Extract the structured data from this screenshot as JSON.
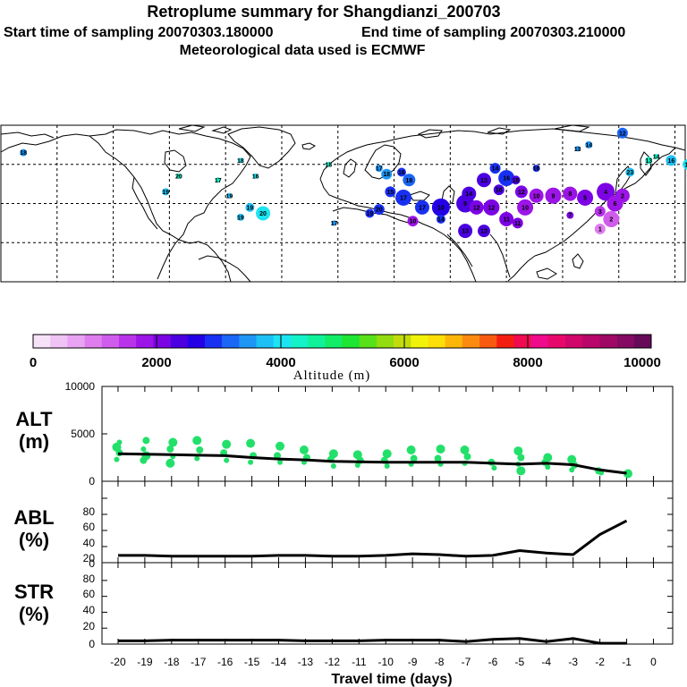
{
  "header": {
    "title": "Retroplume summary for Shangdianzi_200703",
    "start_label": "Start time of sampling 20070303.180000",
    "end_label": "End time of sampling 20070303.210000",
    "met_label": "Meteorological data used is ECMWF"
  },
  "colorbar": {
    "title": "Altitude (m)",
    "tick_labels": [
      "0",
      "2000",
      "4000",
      "6000",
      "8000",
      "10000"
    ],
    "colors": [
      "#f7e1f9",
      "#f0c3f5",
      "#e8a3f2",
      "#de7eee",
      "#d05cec",
      "#b933ea",
      "#9c14e6",
      "#7c04e4",
      "#4a00e0",
      "#2400e6",
      "#1830f2",
      "#1a66f5",
      "#1d96f5",
      "#1dc0f5",
      "#1ce4f2",
      "#13f2c8",
      "#10f29a",
      "#12ec66",
      "#1ee432",
      "#58e018",
      "#92dc10",
      "#c2dc0a",
      "#f0f20a",
      "#fcde08",
      "#fcb608",
      "#fc8a10",
      "#f85a10",
      "#f41e10",
      "#f00a50",
      "#f00a8c",
      "#e8086c",
      "#d0066a",
      "#b8066a",
      "#a00866",
      "#840a62",
      "#660a58"
    ]
  },
  "map": {
    "markers": [
      {
        "lon": -168,
        "lat": 66,
        "label": "18",
        "color": "#1d96f5",
        "r": 4
      },
      {
        "lon": -92,
        "lat": 46,
        "label": "19",
        "color": "#1dc0f5",
        "r": 4
      },
      {
        "lon": -85,
        "lat": 54,
        "label": "20",
        "color": "#13f2c8",
        "r": 3
      },
      {
        "lon": -64,
        "lat": 52,
        "label": "17",
        "color": "#13f2c8",
        "r": 3
      },
      {
        "lon": -58,
        "lat": 44,
        "label": "19",
        "color": "#1dc0f5",
        "r": 3
      },
      {
        "lon": -52,
        "lat": 62,
        "label": "18",
        "color": "#1ce4f2",
        "r": 3
      },
      {
        "lon": -44,
        "lat": 54,
        "label": "16",
        "color": "#1ce4f2",
        "r": 3
      },
      {
        "lon": -47,
        "lat": 38,
        "label": "19",
        "color": "#1dc0f5",
        "r": 5
      },
      {
        "lon": -40,
        "lat": 35,
        "label": "20",
        "color": "#1ce4f2",
        "r": 8
      },
      {
        "lon": -52,
        "lat": 33,
        "label": "19",
        "color": "#1dc0f5",
        "r": 4
      },
      {
        "lon": -5,
        "lat": 60,
        "label": "18",
        "color": "#13f2c8",
        "r": 3
      },
      {
        "lon": -2,
        "lat": 30,
        "label": "17",
        "color": "#1d96f5",
        "r": 3
      },
      {
        "lon": 22,
        "lat": 58,
        "label": "17",
        "color": "#1d96f5",
        "r": 4
      },
      {
        "lon": 26,
        "lat": 55,
        "label": "18",
        "color": "#1d96f5",
        "r": 6
      },
      {
        "lon": 34,
        "lat": 56,
        "label": "16",
        "color": "#1830f2",
        "r": 5
      },
      {
        "lon": 28,
        "lat": 46,
        "label": "15",
        "color": "#1830f2",
        "r": 6
      },
      {
        "lon": 35,
        "lat": 43,
        "label": "17",
        "color": "#1830f2",
        "r": 9
      },
      {
        "lon": 38,
        "lat": 52,
        "label": "18",
        "color": "#1a66f5",
        "r": 7
      },
      {
        "lon": 22,
        "lat": 37,
        "label": "20",
        "color": "#1830f2",
        "r": 6
      },
      {
        "lon": 17,
        "lat": 35,
        "label": "19",
        "color": "#1830f2",
        "r": 5
      },
      {
        "lon": 45,
        "lat": 38,
        "label": "17",
        "color": "#1830f2",
        "r": 8
      },
      {
        "lon": 40,
        "lat": 31,
        "label": "10",
        "color": "#9c14e6",
        "r": 6
      },
      {
        "lon": 55,
        "lat": 38,
        "label": "10",
        "color": "#2400e6",
        "r": 10
      },
      {
        "lon": 55,
        "lat": 32,
        "label": "14",
        "color": "#1830f2",
        "r": 5
      },
      {
        "lon": 68,
        "lat": 40,
        "label": "9",
        "color": "#4a00e0",
        "r": 10
      },
      {
        "lon": 70,
        "lat": 45,
        "label": "14",
        "color": "#4a00e0",
        "r": 8
      },
      {
        "lon": 78,
        "lat": 52,
        "label": "13",
        "color": "#4a00e0",
        "r": 8
      },
      {
        "lon": 84,
        "lat": 58,
        "label": "14",
        "color": "#1830f2",
        "r": 6
      },
      {
        "lon": 90,
        "lat": 53,
        "label": "16",
        "color": "#1830f2",
        "r": 9
      },
      {
        "lon": 86,
        "lat": 47,
        "label": "16",
        "color": "#4a00e0",
        "r": 6
      },
      {
        "lon": 95,
        "lat": 52,
        "label": "15",
        "color": "#4a00e0",
        "r": 5
      },
      {
        "lon": 98,
        "lat": 46,
        "label": "12",
        "color": "#7c04e4",
        "r": 7
      },
      {
        "lon": 68,
        "lat": 26,
        "label": "13",
        "color": "#4a00e0",
        "r": 8
      },
      {
        "lon": 78,
        "lat": 26,
        "label": "13",
        "color": "#4a00e0",
        "r": 7
      },
      {
        "lon": 74,
        "lat": 38,
        "label": "12",
        "color": "#7c04e4",
        "r": 8
      },
      {
        "lon": 82,
        "lat": 38,
        "label": "12",
        "color": "#7c04e4",
        "r": 9
      },
      {
        "lon": 90,
        "lat": 32,
        "label": "11",
        "color": "#7c04e4",
        "r": 8
      },
      {
        "lon": 96,
        "lat": 30,
        "label": "11",
        "color": "#7c04e4",
        "r": 6
      },
      {
        "lon": 100,
        "lat": 38,
        "label": "10",
        "color": "#9c14e6",
        "r": 9
      },
      {
        "lon": 106,
        "lat": 44,
        "label": "10",
        "color": "#9c14e6",
        "r": 8
      },
      {
        "lon": 115,
        "lat": 44,
        "label": "9",
        "color": "#9c14e6",
        "r": 9
      },
      {
        "lon": 124,
        "lat": 45,
        "label": "8",
        "color": "#9c14e6",
        "r": 8
      },
      {
        "lon": 132,
        "lat": 43,
        "label": "5",
        "color": "#7c04e4",
        "r": 9
      },
      {
        "lon": 143,
        "lat": 46,
        "label": "4",
        "color": "#7c04e4",
        "r": 10
      },
      {
        "lon": 148,
        "lat": 40,
        "label": "6",
        "color": "#9c14e6",
        "r": 9
      },
      {
        "lon": 152,
        "lat": 44,
        "label": "2",
        "color": "#9c14e6",
        "r": 8
      },
      {
        "lon": 140,
        "lat": 36,
        "label": "3",
        "color": "#b933ea",
        "r": 6
      },
      {
        "lon": 146,
        "lat": 32,
        "label": "2",
        "color": "#d05cec",
        "r": 9
      },
      {
        "lon": 140,
        "lat": 27,
        "label": "1",
        "color": "#de7eee",
        "r": 6
      },
      {
        "lon": 124,
        "lat": 34,
        "label": "7",
        "color": "#7c04e4",
        "r": 4
      },
      {
        "lon": 106,
        "lat": 58,
        "label": "16",
        "color": "#1830f2",
        "r": 4
      },
      {
        "lon": 128,
        "lat": 68,
        "label": "13",
        "color": "#1d96f5",
        "r": 3
      },
      {
        "lon": 134,
        "lat": 70,
        "label": "14",
        "color": "#1d96f5",
        "r": 4
      },
      {
        "lon": 152,
        "lat": 76,
        "label": "12",
        "color": "#1a66f5",
        "r": 6
      },
      {
        "lon": 156,
        "lat": 56,
        "label": "23",
        "color": "#1dc0f5",
        "r": 5
      },
      {
        "lon": 166,
        "lat": 62,
        "label": "13",
        "color": "#13f2c8",
        "r": 4
      },
      {
        "lon": 170,
        "lat": 64,
        "label": "14",
        "color": "#13f2c8",
        "r": 3
      },
      {
        "lon": 178,
        "lat": 62,
        "label": "16",
        "color": "#1dc0f5",
        "r": 6
      },
      {
        "lon": 187,
        "lat": 60,
        "label": "19",
        "color": "#1ce4f2",
        "r": 6
      },
      {
        "lon": 188,
        "lat": 55,
        "label": "17",
        "color": "#1ce4f2",
        "r": 3
      }
    ]
  },
  "panels": {
    "alt_label_line1": "ALT",
    "alt_label_line2": "(m)",
    "abl_label_line1": "ABL",
    "abl_label_line2": "(%)",
    "str_label_line1": "STR",
    "str_label_line2": "(%)",
    "alt_ticks": [
      "10000",
      "5000",
      "0"
    ],
    "pct_ticks": [
      "80",
      "60",
      "40",
      "20",
      "0"
    ],
    "x_ticks": [
      "-20",
      "-19",
      "-18",
      "-17",
      "-16",
      "-15",
      "-14",
      "-13",
      "-12",
      "-11",
      "-10",
      "-9",
      "-8",
      "-7",
      "-6",
      "-5",
      "-4",
      "-3",
      "-2",
      "-1",
      "0"
    ],
    "x_label": "Travel time (days)"
  },
  "chart_data": [
    {
      "type": "line",
      "title": "ALT (m)",
      "xlabel": "Travel time (days)",
      "ylabel": "ALT (m)",
      "xlim": [
        -20,
        0
      ],
      "ylim": [
        0,
        10000
      ],
      "series": [
        {
          "name": "median altitude",
          "x": [
            -20,
            -19,
            -18,
            -17,
            -16,
            -15,
            -14,
            -13,
            -12,
            -11,
            -10,
            -9,
            -8,
            -7,
            -6,
            -5,
            -4,
            -3,
            -2,
            -1
          ],
          "values": [
            2900,
            2850,
            2800,
            2750,
            2700,
            2500,
            2350,
            2250,
            2100,
            2050,
            2000,
            2000,
            2000,
            2000,
            1900,
            1800,
            1900,
            1750,
            1200,
            850
          ]
        },
        {
          "name": "cluster altitudes",
          "points": [
            {
              "x": -20,
              "y": 2300
            },
            {
              "x": -20,
              "y": 3000
            },
            {
              "x": -20,
              "y": 3600
            },
            {
              "x": -20,
              "y": 4100
            },
            {
              "x": -19,
              "y": 2200
            },
            {
              "x": -19,
              "y": 2700
            },
            {
              "x": -19,
              "y": 3400
            },
            {
              "x": -19,
              "y": 4300
            },
            {
              "x": -18,
              "y": 1900
            },
            {
              "x": -18,
              "y": 2600
            },
            {
              "x": -18,
              "y": 3400
            },
            {
              "x": -18,
              "y": 4100
            },
            {
              "x": -17,
              "y": 2400
            },
            {
              "x": -17,
              "y": 3300
            },
            {
              "x": -17,
              "y": 4300
            },
            {
              "x": -16,
              "y": 2200
            },
            {
              "x": -16,
              "y": 3000
            },
            {
              "x": -16,
              "y": 3900
            },
            {
              "x": -15,
              "y": 2000
            },
            {
              "x": -15,
              "y": 2700
            },
            {
              "x": -15,
              "y": 4000
            },
            {
              "x": -14,
              "y": 2000
            },
            {
              "x": -14,
              "y": 2700
            },
            {
              "x": -14,
              "y": 3700
            },
            {
              "x": -13,
              "y": 2000
            },
            {
              "x": -13,
              "y": 2500
            },
            {
              "x": -13,
              "y": 3300
            },
            {
              "x": -12,
              "y": 1600
            },
            {
              "x": -12,
              "y": 2300
            },
            {
              "x": -12,
              "y": 2900
            },
            {
              "x": -11,
              "y": 1700
            },
            {
              "x": -11,
              "y": 2200
            },
            {
              "x": -11,
              "y": 2800
            },
            {
              "x": -10,
              "y": 1600
            },
            {
              "x": -10,
              "y": 2200
            },
            {
              "x": -10,
              "y": 2900
            },
            {
              "x": -9,
              "y": 1800
            },
            {
              "x": -9,
              "y": 2400
            },
            {
              "x": -9,
              "y": 3300
            },
            {
              "x": -8,
              "y": 1800
            },
            {
              "x": -8,
              "y": 2400
            },
            {
              "x": -8,
              "y": 3400
            },
            {
              "x": -7,
              "y": 1900
            },
            {
              "x": -7,
              "y": 2600
            },
            {
              "x": -7,
              "y": 3300
            },
            {
              "x": -6,
              "y": 1400
            },
            {
              "x": -6,
              "y": 2000
            },
            {
              "x": -5,
              "y": 1100
            },
            {
              "x": -5,
              "y": 1800
            },
            {
              "x": -5,
              "y": 2500
            },
            {
              "x": -5,
              "y": 3200
            },
            {
              "x": -4,
              "y": 1500
            },
            {
              "x": -4,
              "y": 2000
            },
            {
              "x": -4,
              "y": 2500
            },
            {
              "x": -3,
              "y": 1200
            },
            {
              "x": -3,
              "y": 1700
            },
            {
              "x": -3,
              "y": 2300
            },
            {
              "x": -2,
              "y": 900
            },
            {
              "x": -2,
              "y": 1100
            },
            {
              "x": -1,
              "y": 800
            }
          ]
        }
      ]
    },
    {
      "type": "line",
      "title": "ABL (%)",
      "xlabel": "Travel time (days)",
      "ylabel": "ABL (%)",
      "xlim": [
        -20,
        0
      ],
      "ylim": [
        0,
        90
      ],
      "x": [
        -20,
        -19,
        -18,
        -17,
        -16,
        -15,
        -14,
        -13,
        -12,
        -11,
        -10,
        -9,
        -8,
        -7,
        -6,
        -5,
        -4,
        -3,
        -2,
        -1
      ],
      "values": [
        9,
        9,
        8,
        8,
        8,
        8,
        9,
        9,
        8,
        8,
        9,
        11,
        10,
        8,
        9,
        15,
        12,
        10,
        35,
        52
      ]
    },
    {
      "type": "line",
      "title": "STR (%)",
      "xlabel": "Travel time (days)",
      "ylabel": "STR (%)",
      "xlim": [
        -20,
        0
      ],
      "ylim": [
        0,
        90
      ],
      "x": [
        -20,
        -19,
        -18,
        -17,
        -16,
        -15,
        -14,
        -13,
        -12,
        -11,
        -10,
        -9,
        -8,
        -7,
        -6,
        -5,
        -4,
        -3,
        -2,
        -1
      ],
      "values": [
        4,
        4,
        5,
        5,
        5,
        5,
        5,
        4,
        4,
        4,
        5,
        5,
        5,
        3,
        6,
        7,
        3,
        7,
        1,
        1
      ]
    }
  ]
}
